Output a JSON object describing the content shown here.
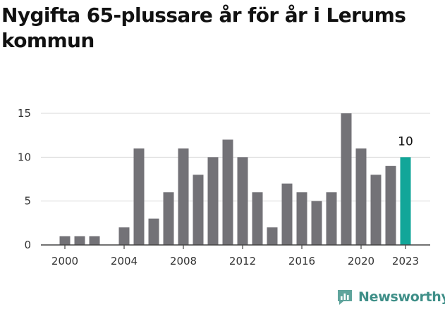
{
  "header": {
    "title": "Nygifta 65-plussare år för år i Lerums kommun"
  },
  "brand": {
    "name": "Newsworthy"
  },
  "colors": {
    "bar": "#737277",
    "highlight": "#12a699",
    "grid": "#dadada",
    "axis": "#444444",
    "text": "#333333",
    "brand": "#3f8f88"
  },
  "chart_data": {
    "type": "bar",
    "title": "Nygifta 65-plussare år för år i Lerums kommun",
    "xlabel": "",
    "ylabel": "",
    "categories": [
      2000,
      2001,
      2002,
      2003,
      2004,
      2005,
      2006,
      2007,
      2008,
      2009,
      2010,
      2011,
      2012,
      2013,
      2014,
      2015,
      2016,
      2017,
      2018,
      2019,
      2020,
      2021,
      2022,
      2023
    ],
    "values": [
      1,
      1,
      1,
      0,
      2,
      11,
      3,
      6,
      11,
      8,
      10,
      12,
      10,
      6,
      2,
      7,
      6,
      5,
      6,
      15,
      11,
      8,
      9,
      10
    ],
    "ylim": [
      0,
      15
    ],
    "yticks": [
      0,
      5,
      10,
      15
    ],
    "xticks": [
      2000,
      2004,
      2008,
      2012,
      2016,
      2020,
      2023
    ],
    "highlight": {
      "category": 2023,
      "label": "10"
    },
    "grid": true,
    "legend": "none"
  }
}
